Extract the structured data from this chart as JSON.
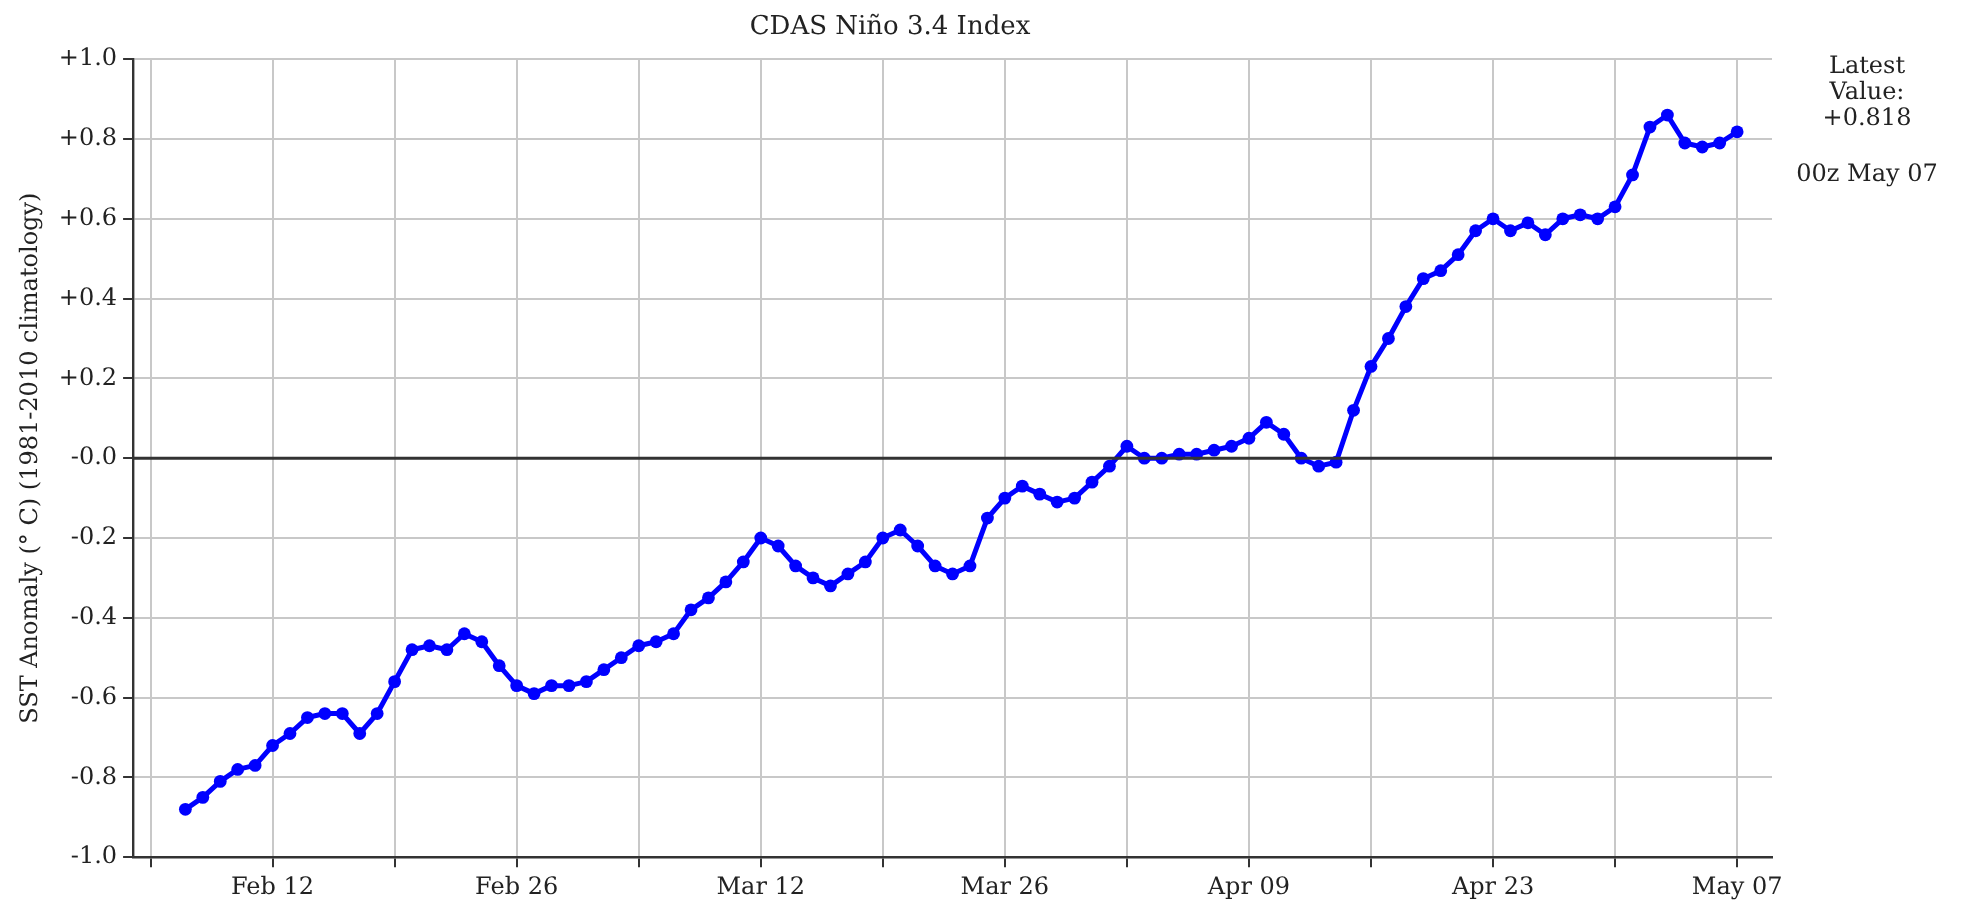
{
  "chart_data": {
    "type": "line",
    "title": "CDAS Niño 3.4 Index",
    "ylabel": "SST Anomaly (° C) (1981-2010 climatology)",
    "x": [
      "--02-07",
      "--02-08",
      "--02-09",
      "--02-10",
      "--02-11",
      "--02-12",
      "--02-13",
      "--02-14",
      "--02-15",
      "--02-16",
      "--02-17",
      "--02-18",
      "--02-19",
      "--02-20",
      "--02-21",
      "--02-22",
      "--02-23",
      "--02-24",
      "--02-25",
      "--02-26",
      "--02-27",
      "--02-28",
      "--03-01",
      "--03-02",
      "--03-03",
      "--03-04",
      "--03-05",
      "--03-06",
      "--03-07",
      "--03-08",
      "--03-09",
      "--03-10",
      "--03-11",
      "--03-12",
      "--03-13",
      "--03-14",
      "--03-15",
      "--03-16",
      "--03-17",
      "--03-18",
      "--03-19",
      "--03-20",
      "--03-21",
      "--03-22",
      "--03-23",
      "--03-24",
      "--03-25",
      "--03-26",
      "--03-27",
      "--03-28",
      "--03-29",
      "--03-30",
      "--03-31",
      "--04-01",
      "--04-02",
      "--04-03",
      "--04-04",
      "--04-05",
      "--04-06",
      "--04-07",
      "--04-08",
      "--04-09",
      "--04-10",
      "--04-11",
      "--04-12",
      "--04-13",
      "--04-14",
      "--04-15",
      "--04-16",
      "--04-17",
      "--04-18",
      "--04-19",
      "--04-20",
      "--04-21",
      "--04-22",
      "--04-23",
      "--04-24",
      "--04-25",
      "--04-26",
      "--04-27",
      "--04-28",
      "--04-29",
      "--04-30",
      "--05-01",
      "--05-02",
      "--05-03",
      "--05-04",
      "--05-05",
      "--05-06",
      "--05-07"
    ],
    "series": [
      {
        "color": "#0000ff",
        "values": [
          -0.88,
          -0.85,
          -0.81,
          -0.78,
          -0.77,
          -0.72,
          -0.69,
          -0.65,
          -0.64,
          -0.64,
          -0.69,
          -0.64,
          -0.56,
          -0.48,
          -0.47,
          -0.48,
          -0.44,
          -0.46,
          -0.52,
          -0.57,
          -0.59,
          -0.57,
          -0.57,
          -0.56,
          -0.53,
          -0.5,
          -0.47,
          -0.46,
          -0.44,
          -0.38,
          -0.35,
          -0.31,
          -0.26,
          -0.2,
          -0.22,
          -0.27,
          -0.3,
          -0.32,
          -0.29,
          -0.26,
          -0.2,
          -0.18,
          -0.22,
          -0.27,
          -0.29,
          -0.27,
          -0.15,
          -0.1,
          -0.07,
          -0.09,
          -0.11,
          -0.1,
          -0.06,
          -0.02,
          0.03,
          0.0,
          0.0,
          0.01,
          0.01,
          0.02,
          0.03,
          0.05,
          0.09,
          0.06,
          0.0,
          -0.02,
          -0.01,
          0.12,
          0.23,
          0.3,
          0.38,
          0.45,
          0.47,
          0.51,
          0.57,
          0.6,
          0.57,
          0.59,
          0.56,
          0.6,
          0.61,
          0.6,
          0.63,
          0.71,
          0.83,
          0.86,
          0.79,
          0.78,
          0.79,
          0.818
        ]
      }
    ],
    "xlim": [
      "--02-04",
      "--05-09"
    ],
    "xticks": [
      {
        "value": "--02-05",
        "label": null
      },
      {
        "value": "--02-12",
        "label": "Feb 12"
      },
      {
        "value": "--02-19",
        "label": null
      },
      {
        "value": "--02-26",
        "label": "Feb 26"
      },
      {
        "value": "--03-05",
        "label": null
      },
      {
        "value": "--03-12",
        "label": "Mar 12"
      },
      {
        "value": "--03-19",
        "label": null
      },
      {
        "value": "--03-26",
        "label": "Mar 26"
      },
      {
        "value": "--04-02",
        "label": null
      },
      {
        "value": "--04-09",
        "label": "Apr 09"
      },
      {
        "value": "--04-16",
        "label": null
      },
      {
        "value": "--04-23",
        "label": "Apr 23"
      },
      {
        "value": "--04-30",
        "label": null
      },
      {
        "value": "--05-07",
        "label": "May 07"
      }
    ],
    "ylim": [
      -1.0,
      1.0
    ],
    "yticks": [
      {
        "value": -1.0,
        "label": "-1.0"
      },
      {
        "value": -0.8,
        "label": "-0.8"
      },
      {
        "value": -0.6,
        "label": "-0.6"
      },
      {
        "value": -0.4,
        "label": "-0.4"
      },
      {
        "value": -0.2,
        "label": "-0.2"
      },
      {
        "value": 0,
        "label": "-0.0"
      },
      {
        "value": 0.2,
        "label": "+0.2"
      },
      {
        "value": 0.4,
        "label": "+0.4"
      },
      {
        "value": 0.6,
        "label": "+0.6"
      },
      {
        "value": 0.8,
        "label": "+0.8"
      },
      {
        "value": 1.0,
        "label": "+1.0"
      }
    ],
    "ref_lines": [
      {
        "axis": "y",
        "value": 0,
        "color": "#333333"
      }
    ],
    "annotations": [
      "Latest Value: +0.818",
      "00z May 07"
    ],
    "grid": true,
    "legend": false,
    "marker": "circle",
    "line_style": "solid"
  }
}
